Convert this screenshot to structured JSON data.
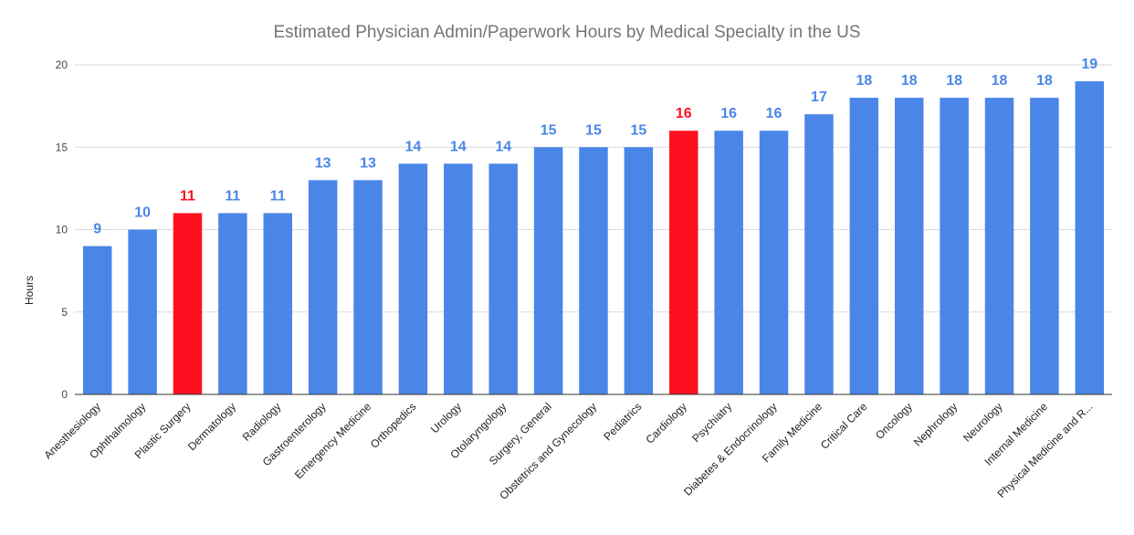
{
  "chart_data": {
    "type": "bar",
    "title": "Estimated Physician Admin/Paperwork Hours by Medical Specialty in the US",
    "xlabel": "",
    "ylabel": "Hours",
    "ylim": [
      0,
      20
    ],
    "yticks": [
      0,
      5,
      10,
      15,
      20
    ],
    "grid": true,
    "categories": [
      "Anesthesiology",
      "Ophthalmology",
      "Plastic Surgery",
      "Dermatology",
      "Radiology",
      "Gastroenterology",
      "Emergency Medicine",
      "Orthopedics",
      "Urology",
      "Otolaryngology",
      "Surgery, General",
      "Obstetrics and Gynecology",
      "Pediatrics",
      "Cardiology",
      "Psychiatry",
      "Diabetes & Endocrinology",
      "Family Medicine",
      "Critical Care",
      "Oncology",
      "Nephrology",
      "Neurology",
      "Internal Medicine",
      "Physical Medicine and R..."
    ],
    "values": [
      9,
      10,
      11,
      11,
      11,
      13,
      13,
      14,
      14,
      14,
      15,
      15,
      15,
      16,
      16,
      16,
      17,
      18,
      18,
      18,
      18,
      18,
      19
    ],
    "highlighted": [
      "Plastic Surgery",
      "Cardiology"
    ],
    "colors": {
      "bar": "#4a86e8",
      "highlight": "#ff1021",
      "label": "#4a86e8",
      "highlight_label": "#ff1021"
    }
  }
}
